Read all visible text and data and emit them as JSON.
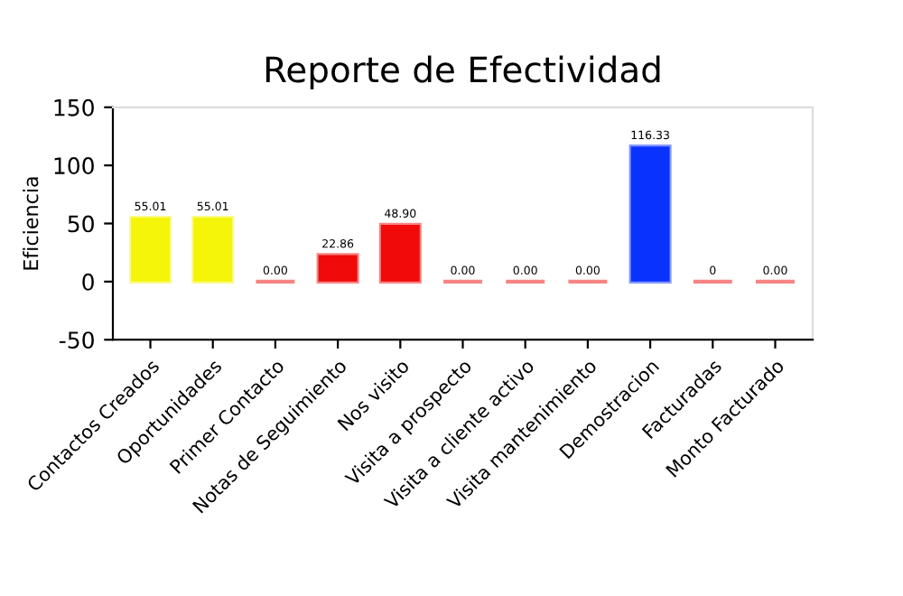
{
  "chart_data": {
    "type": "bar",
    "title": "Reporte de Efectividad",
    "ylabel": "Eficiencia",
    "categories": [
      "Contactos Creados",
      "Oportunidades",
      "Primer Contacto",
      "Notas de Seguimiento",
      "Nos visito",
      "Visita a prospecto",
      "Visita a cliente activo",
      "Visita mantenimiento",
      "Demostracion",
      "Facturadas",
      "Monto Facturado"
    ],
    "values": [
      55.01,
      55.01,
      0,
      22.86,
      48.9,
      0,
      0,
      0,
      116.33,
      0,
      0
    ],
    "value_labels": [
      "55.01",
      "55.01",
      "0.00",
      "22.86",
      "48.90",
      "0.00",
      "0.00",
      "0.00",
      "116.33",
      "0",
      "0.00"
    ],
    "colors": [
      "#f5f50a",
      "#f5f50a",
      "#f00a0a",
      "#f00a0a",
      "#f00a0a",
      "#f00a0a",
      "#f00a0a",
      "#f00a0a",
      "#0a32ff",
      "#f00a0a",
      "#f00a0a"
    ],
    "ylim": [
      -50,
      150
    ],
    "yticks": [
      -50,
      0,
      50,
      100,
      150
    ],
    "grid": false,
    "legend": false
  }
}
